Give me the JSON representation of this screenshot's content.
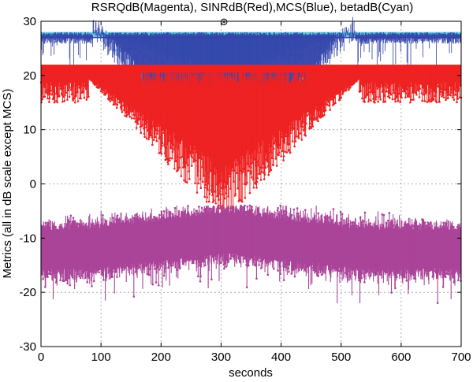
{
  "chart_data": {
    "type": "scatter",
    "title": "RSRQdB(Magenta), SINRdB(Red),MCS(Blue), betadB(Cyan)",
    "xlabel": "seconds",
    "ylabel": "Metrics (all in dB scale except MCS)",
    "xlim": [
      0,
      700
    ],
    "ylim": [
      -30,
      30
    ],
    "xticks": [
      0,
      100,
      200,
      300,
      400,
      500,
      600,
      700
    ],
    "yticks": [
      -30,
      -20,
      -10,
      0,
      10,
      20,
      30
    ],
    "grid": true,
    "annotation": {
      "symbol": "⊛",
      "x": 305
    },
    "series": [
      {
        "name": "betadB (Cyan)",
        "color": "#66CCDD",
        "ceiling": 28,
        "center_dip": 21,
        "spread": 3
      },
      {
        "name": "MCS (Blue)",
        "color": "#3344AA",
        "ceiling": 28,
        "typical": 27,
        "center_min": 2
      },
      {
        "name": "SINRdB (Red)",
        "color": "#EE2222",
        "ceiling": 22,
        "center_min": -3,
        "low_floor": 15
      },
      {
        "name": "RSRQdB (Magenta)",
        "color": "#AA4499",
        "center_mean": -12,
        "mean_at_center": -9,
        "upper": -4,
        "lower": -22
      }
    ]
  }
}
